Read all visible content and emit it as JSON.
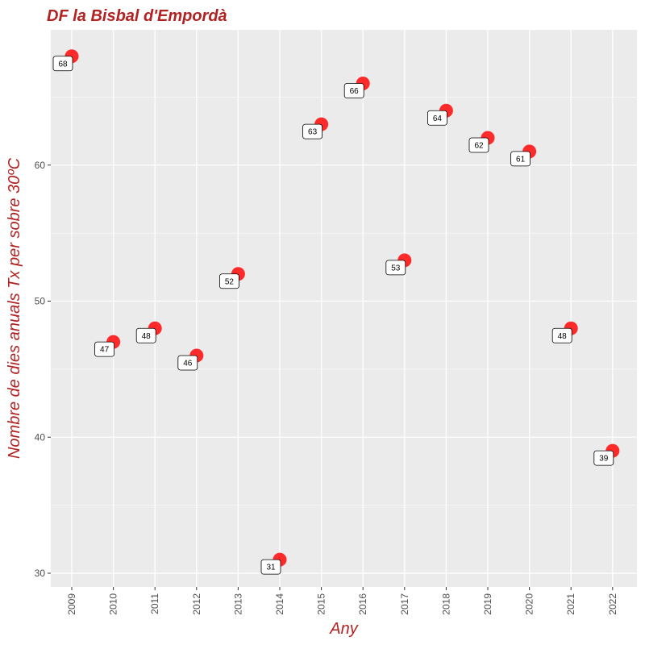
{
  "chart_data": {
    "type": "scatter",
    "title": "DF la Bisbal d'Empordà",
    "xlabel": "Any",
    "ylabel": "Nombre de dies anuals Tx per sobre 30ºC",
    "x": [
      "2009",
      "2010",
      "2011",
      "2012",
      "2013",
      "2014",
      "2015",
      "2016",
      "2017",
      "2018",
      "2019",
      "2020",
      "2021",
      "2022"
    ],
    "values": [
      68,
      47,
      48,
      46,
      52,
      31,
      63,
      66,
      53,
      64,
      62,
      61,
      48,
      39
    ],
    "yticks": [
      "30",
      "40",
      "50",
      "60"
    ],
    "ylim": [
      29.1,
      69
    ],
    "grid": true,
    "colors": {
      "point": "#ff2a2a",
      "panel": "#ebebeb",
      "grid": "#ffffff",
      "title": "#b22222"
    }
  }
}
